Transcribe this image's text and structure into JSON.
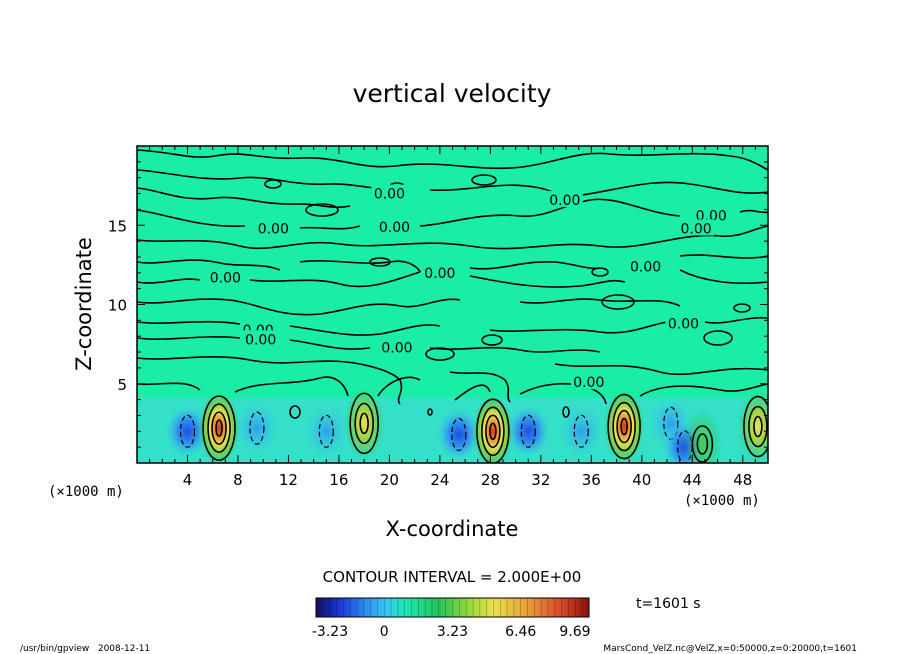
{
  "chart_data": {
    "type": "heatmap",
    "title": "vertical velocity",
    "xlabel": "X-coordinate",
    "ylabel": "Z-coordinate",
    "x_unit_left": "(×1000 m)",
    "x_unit_right": "(×1000 m)",
    "xlim": [
      0,
      50
    ],
    "ylim": [
      0,
      20
    ],
    "x_ticks": [
      4,
      8,
      12,
      16,
      20,
      24,
      28,
      32,
      36,
      40,
      44,
      48
    ],
    "y_ticks": [
      5,
      10,
      15
    ],
    "contour_interval_text": "CONTOUR INTERVAL = 2.000E+00",
    "contour_labels": [
      {
        "text": "0.00",
        "x": 20.0,
        "z": 17.0
      },
      {
        "text": "0.00",
        "x": 33.9,
        "z": 16.6
      },
      {
        "text": "0.00",
        "x": 10.8,
        "z": 14.8
      },
      {
        "text": "0.00",
        "x": 20.4,
        "z": 14.9
      },
      {
        "text": "0.00",
        "x": 45.5,
        "z": 15.6
      },
      {
        "text": "0.00",
        "x": 44.3,
        "z": 14.8
      },
      {
        "text": "0.00",
        "x": 40.3,
        "z": 12.4
      },
      {
        "text": "0.00",
        "x": 24.0,
        "z": 12.0
      },
      {
        "text": "0.00",
        "x": 7.0,
        "z": 11.7
      },
      {
        "text": "0.00",
        "x": 43.3,
        "z": 8.8
      },
      {
        "text": "0.00",
        "x": 9.6,
        "z": 8.4
      },
      {
        "text": "0.00",
        "x": 9.8,
        "z": 7.8
      },
      {
        "text": "0.00",
        "x": 20.6,
        "z": 7.3
      },
      {
        "text": "0.00",
        "x": 35.8,
        "z": 5.1
      }
    ],
    "updrafts": [
      {
        "x": 6.5,
        "z": 2.2,
        "peak": 9.69
      },
      {
        "x": 18.0,
        "z": 2.5,
        "peak": 6.46
      },
      {
        "x": 28.2,
        "z": 2.0,
        "peak": 9.0
      },
      {
        "x": 38.6,
        "z": 2.3,
        "peak": 8.0
      },
      {
        "x": 44.8,
        "z": 1.2,
        "peak": 3.23
      },
      {
        "x": 49.2,
        "z": 2.3,
        "peak": 6.46
      }
    ],
    "downdrafts": [
      {
        "x": 4.0,
        "z": 2.0,
        "min": -3.23
      },
      {
        "x": 9.5,
        "z": 2.2,
        "min": -2.0
      },
      {
        "x": 15.0,
        "z": 2.0,
        "min": -2.0
      },
      {
        "x": 25.5,
        "z": 1.8,
        "min": -3.23
      },
      {
        "x": 31.0,
        "z": 2.0,
        "min": -3.23
      },
      {
        "x": 35.2,
        "z": 2.0,
        "min": -2.0
      },
      {
        "x": 42.3,
        "z": 2.5,
        "min": -2.0
      },
      {
        "x": 43.4,
        "z": 1.0,
        "min": -3.23
      }
    ],
    "colorbar": {
      "min": -3.23,
      "max": 9.69,
      "tick_labels": [
        "-3.23",
        "0",
        "3.23",
        "6.46",
        "9.69"
      ],
      "tick_values": [
        -3.23,
        0,
        3.23,
        6.46,
        9.69
      ]
    },
    "time_label": "t=1601 s"
  },
  "footer": {
    "left": "/usr/bin/gpview   2008-12-11",
    "right": "MarsCond_VelZ.nc@VelZ,x=0:50000,z=0:20000,t=1601"
  },
  "colors": {
    "background_field": "#1aeea6",
    "updraft_core": "#e0402a",
    "downdraft_core": "#1f55e6"
  }
}
